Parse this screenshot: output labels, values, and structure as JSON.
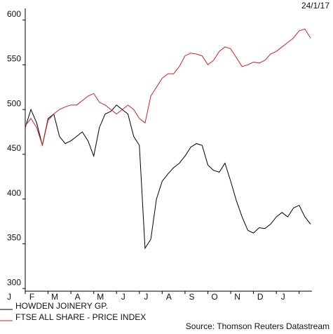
{
  "chart_data": {
    "type": "line",
    "date": "24/1/17",
    "source": "Source: Thomson Reuters Datastream",
    "categories": [
      "J",
      null,
      null,
      null,
      "F",
      null,
      null,
      null,
      "M",
      null,
      null,
      null,
      "A",
      null,
      null,
      null,
      "M",
      null,
      null,
      null,
      "J",
      null,
      null,
      null,
      "J",
      null,
      null,
      null,
      "A",
      null,
      null,
      null,
      "S",
      null,
      null,
      null,
      "O",
      null,
      null,
      null,
      "N",
      null,
      null,
      null,
      "D",
      null,
      null,
      null,
      "J",
      null,
      null
    ],
    "series": [
      {
        "name": "HOWDEN JOINERY GP.",
        "color": "#000000",
        "values": [
          480,
          500,
          485,
          460,
          490,
          495,
          470,
          462,
          465,
          470,
          475,
          465,
          448,
          480,
          495,
          498,
          505,
          500,
          495,
          470,
          460,
          345,
          355,
          400,
          420,
          428,
          435,
          440,
          448,
          458,
          462,
          460,
          438,
          432,
          430,
          440,
          420,
          398,
          380,
          365,
          362,
          368,
          367,
          372,
          380,
          385,
          380,
          390,
          393,
          380,
          372
        ]
      },
      {
        "name": "FTSE ALL SHARE - PRICE INDEX",
        "color": "#d62020",
        "values": [
          482,
          490,
          480,
          460,
          488,
          495,
          500,
          503,
          505,
          505,
          510,
          515,
          518,
          508,
          505,
          500,
          495,
          500,
          505,
          500,
          490,
          485,
          515,
          525,
          535,
          540,
          540,
          548,
          560,
          563,
          562,
          560,
          550,
          555,
          565,
          570,
          568,
          558,
          548,
          550,
          553,
          552,
          555,
          562,
          565,
          570,
          575,
          580,
          588,
          590,
          580
        ]
      }
    ],
    "ylim": [
      297,
      613
    ],
    "yticks": [
      300,
      350,
      400,
      450,
      500,
      550,
      600
    ]
  }
}
